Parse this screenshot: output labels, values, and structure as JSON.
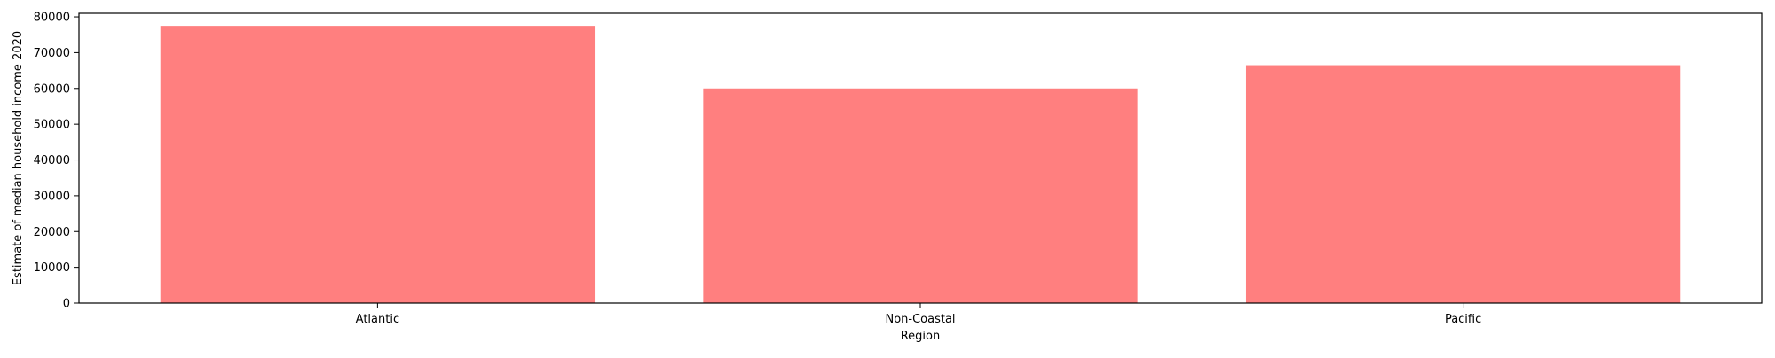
{
  "chart_data": {
    "type": "bar",
    "title": "",
    "xlabel": "Region",
    "ylabel": "Estimate of median household income 2020",
    "categories": [
      "Atlantic",
      "Non-Coastal",
      "Pacific"
    ],
    "values": [
      77500,
      60000,
      66500
    ],
    "ylim": [
      0,
      81000
    ],
    "yticks": [
      0,
      10000,
      20000,
      30000,
      40000,
      50000,
      60000,
      70000,
      80000
    ],
    "grid": false,
    "legend": "none",
    "bar_color": "#ff7f7f"
  }
}
